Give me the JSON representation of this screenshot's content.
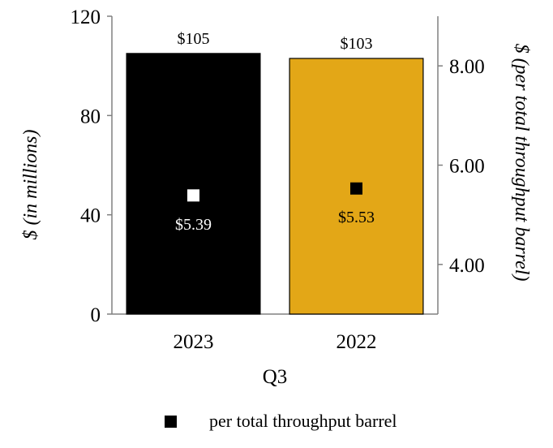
{
  "chart_data": {
    "type": "bar",
    "categories": [
      "2023",
      "2022"
    ],
    "xlabel": "Q3",
    "ylabel": "$ (in millions)",
    "ylabel_right": "$ (per total throughput barrel)",
    "ylim": [
      0,
      120
    ],
    "yticks": [
      "0",
      "40",
      "80",
      "120"
    ],
    "ylim_right": [
      3.0,
      9.0
    ],
    "yticks_right": [
      "4.00",
      "6.00",
      "8.00"
    ],
    "bars": {
      "values": [
        105,
        103
      ],
      "labels": [
        "$105",
        "$103"
      ],
      "colors": [
        "#000000",
        "#E3A717"
      ]
    },
    "markers": {
      "name": "per total throughput barrel",
      "values": [
        5.39,
        5.53
      ],
      "labels": [
        "$5.39",
        "$5.53"
      ],
      "colors": [
        "#ffffff",
        "#000000"
      ],
      "label_colors": [
        "#ffffff",
        "#000000"
      ]
    },
    "legend": {
      "label": "per total throughput barrel",
      "placement": "bottom"
    }
  }
}
